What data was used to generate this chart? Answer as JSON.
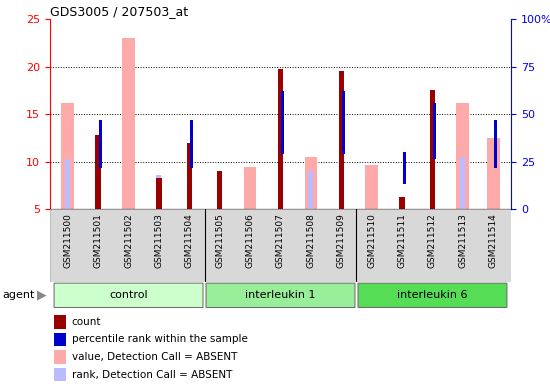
{
  "title": "GDS3005 / 207503_at",
  "samples": [
    "GSM211500",
    "GSM211501",
    "GSM211502",
    "GSM211503",
    "GSM211504",
    "GSM211505",
    "GSM211506",
    "GSM211507",
    "GSM211508",
    "GSM211509",
    "GSM211510",
    "GSM211511",
    "GSM211512",
    "GSM211513",
    "GSM211514"
  ],
  "groups": [
    {
      "label": "control",
      "start": 0,
      "end": 4
    },
    {
      "label": "interleukin 1",
      "start": 5,
      "end": 9
    },
    {
      "label": "interleukin 6",
      "start": 10,
      "end": 14
    }
  ],
  "count_values": [
    null,
    12.8,
    null,
    8.3,
    12.0,
    9.0,
    null,
    19.8,
    null,
    19.5,
    null,
    6.3,
    17.6,
    null,
    null
  ],
  "rank_values": [
    null,
    9.7,
    null,
    null,
    9.7,
    null,
    null,
    11.2,
    null,
    11.2,
    null,
    8.0,
    10.6,
    null,
    9.7
  ],
  "absent_value_values": [
    16.2,
    null,
    23.0,
    null,
    null,
    null,
    9.5,
    null,
    10.5,
    null,
    9.7,
    null,
    null,
    16.2,
    12.5
  ],
  "absent_rank_values": [
    10.3,
    11.4,
    null,
    8.6,
    null,
    null,
    null,
    null,
    9.0,
    null,
    null,
    null,
    null,
    10.5,
    null
  ],
  "ylim_left": [
    5,
    25
  ],
  "ylim_right": [
    0,
    100
  ],
  "yticks_left": [
    5,
    10,
    15,
    20,
    25
  ],
  "yticks_right": [
    0,
    25,
    50,
    75,
    100
  ],
  "yticklabels_right": [
    "0",
    "25",
    "50",
    "75",
    "100%"
  ],
  "color_count": "#990000",
  "color_rank": "#0000cc",
  "color_absent_value": "#ffaaaa",
  "color_absent_rank": "#bbbbff",
  "legend_items": [
    {
      "label": "count",
      "color": "#990000"
    },
    {
      "label": "percentile rank within the sample",
      "color": "#0000cc"
    },
    {
      "label": "value, Detection Call = ABSENT",
      "color": "#ffaaaa"
    },
    {
      "label": "rank, Detection Call = ABSENT",
      "color": "#bbbbff"
    }
  ],
  "agent_label": "agent",
  "group_colors": [
    "#ccffcc",
    "#99ee99",
    "#55dd55"
  ],
  "xlim": [
    -0.6,
    14.6
  ]
}
